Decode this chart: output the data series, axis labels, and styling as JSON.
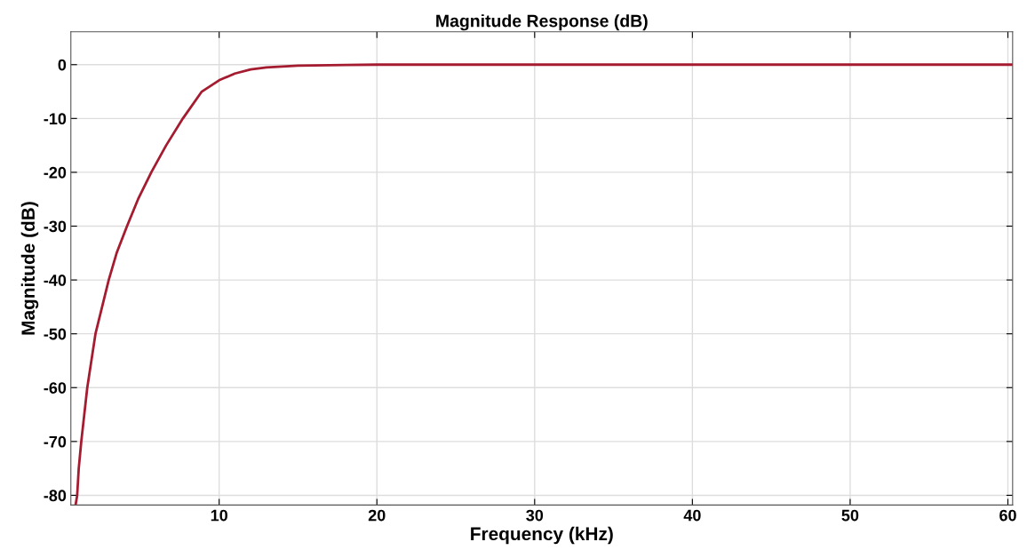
{
  "chart_data": {
    "type": "line",
    "title": "Magnitude Response (dB)",
    "xlabel": "Frequency (kHz)",
    "ylabel": "Magnitude (dB)",
    "x": [
      0.9,
      1.0,
      1.1,
      1.26,
      1.64,
      2.16,
      3.0,
      3.5,
      4.16,
      4.86,
      5.7,
      6.64,
      7.7,
      8.9,
      10,
      11,
      12,
      13,
      15,
      18,
      20,
      30,
      40,
      50,
      60.3
    ],
    "series": [
      {
        "color": "#a51c30",
        "values": [
          -81.8,
          -80,
          -75,
          -70,
          -60,
          -50,
          -40,
          -35,
          -30,
          -25,
          -20,
          -15,
          -10,
          -5,
          -2.9,
          -1.65,
          -0.9,
          -0.5,
          -0.2,
          -0.05,
          0,
          0,
          0,
          0,
          0
        ]
      }
    ],
    "xlim": [
      0.6,
      60.3
    ],
    "ylim": [
      -81.8,
      6.1
    ],
    "xticks": [
      10,
      20,
      30,
      40,
      50,
      60
    ],
    "yticks": [
      -80,
      -70,
      -60,
      -50,
      -40,
      -30,
      -20,
      -10,
      0
    ],
    "grid": true,
    "legend": false,
    "line_style": "solid",
    "marker": "none"
  }
}
